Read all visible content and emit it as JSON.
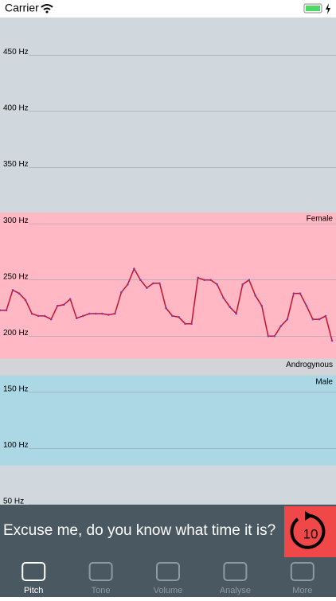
{
  "status_bar": {
    "carrier": "Carrier"
  },
  "chart_data": {
    "type": "line",
    "ylim": [
      50,
      485
    ],
    "yticks": [
      {
        "value": 50,
        "label": "50 Hz"
      },
      {
        "value": 100,
        "label": "100 Hz"
      },
      {
        "value": 150,
        "label": "150 Hz"
      },
      {
        "value": 200,
        "label": "200 Hz"
      },
      {
        "value": 250,
        "label": "250 Hz"
      },
      {
        "value": 300,
        "label": "300 Hz"
      },
      {
        "value": 350,
        "label": "350 Hz"
      },
      {
        "value": 400,
        "label": "400 Hz"
      },
      {
        "value": 450,
        "label": "450 Hz"
      }
    ],
    "grid": true,
    "bands": [
      {
        "name": "Female",
        "from": 180,
        "to": 310,
        "color": "#ffb8c4"
      },
      {
        "name": "Androgynous",
        "from": 165,
        "to": 180,
        "color": "#d2d4d8"
      },
      {
        "name": "Male",
        "from": 85,
        "to": 165,
        "color": "#acd8e6"
      }
    ],
    "color": "#c8102e",
    "marker_color": "#7a3fb0",
    "values": [
      223,
      223,
      241,
      238,
      232,
      220,
      218,
      218,
      215,
      227,
      228,
      233,
      216,
      218,
      220,
      220,
      220,
      219,
      220,
      239,
      246,
      260,
      250,
      243,
      247,
      247,
      225,
      218,
      217,
      211,
      211,
      252,
      250,
      250,
      246,
      234,
      226,
      220,
      246,
      250,
      236,
      227,
      200,
      200,
      209,
      215,
      238,
      238,
      227,
      215,
      215,
      218,
      196
    ]
  },
  "prompt": {
    "text": "Excuse me, do you know what time it is?",
    "countdown": 10
  },
  "tabs": [
    {
      "label": "Pitch",
      "active": true
    },
    {
      "label": "Tone",
      "active": false
    },
    {
      "label": "Volume",
      "active": false
    },
    {
      "label": "Analyse",
      "active": false
    },
    {
      "label": "More",
      "active": false
    }
  ]
}
